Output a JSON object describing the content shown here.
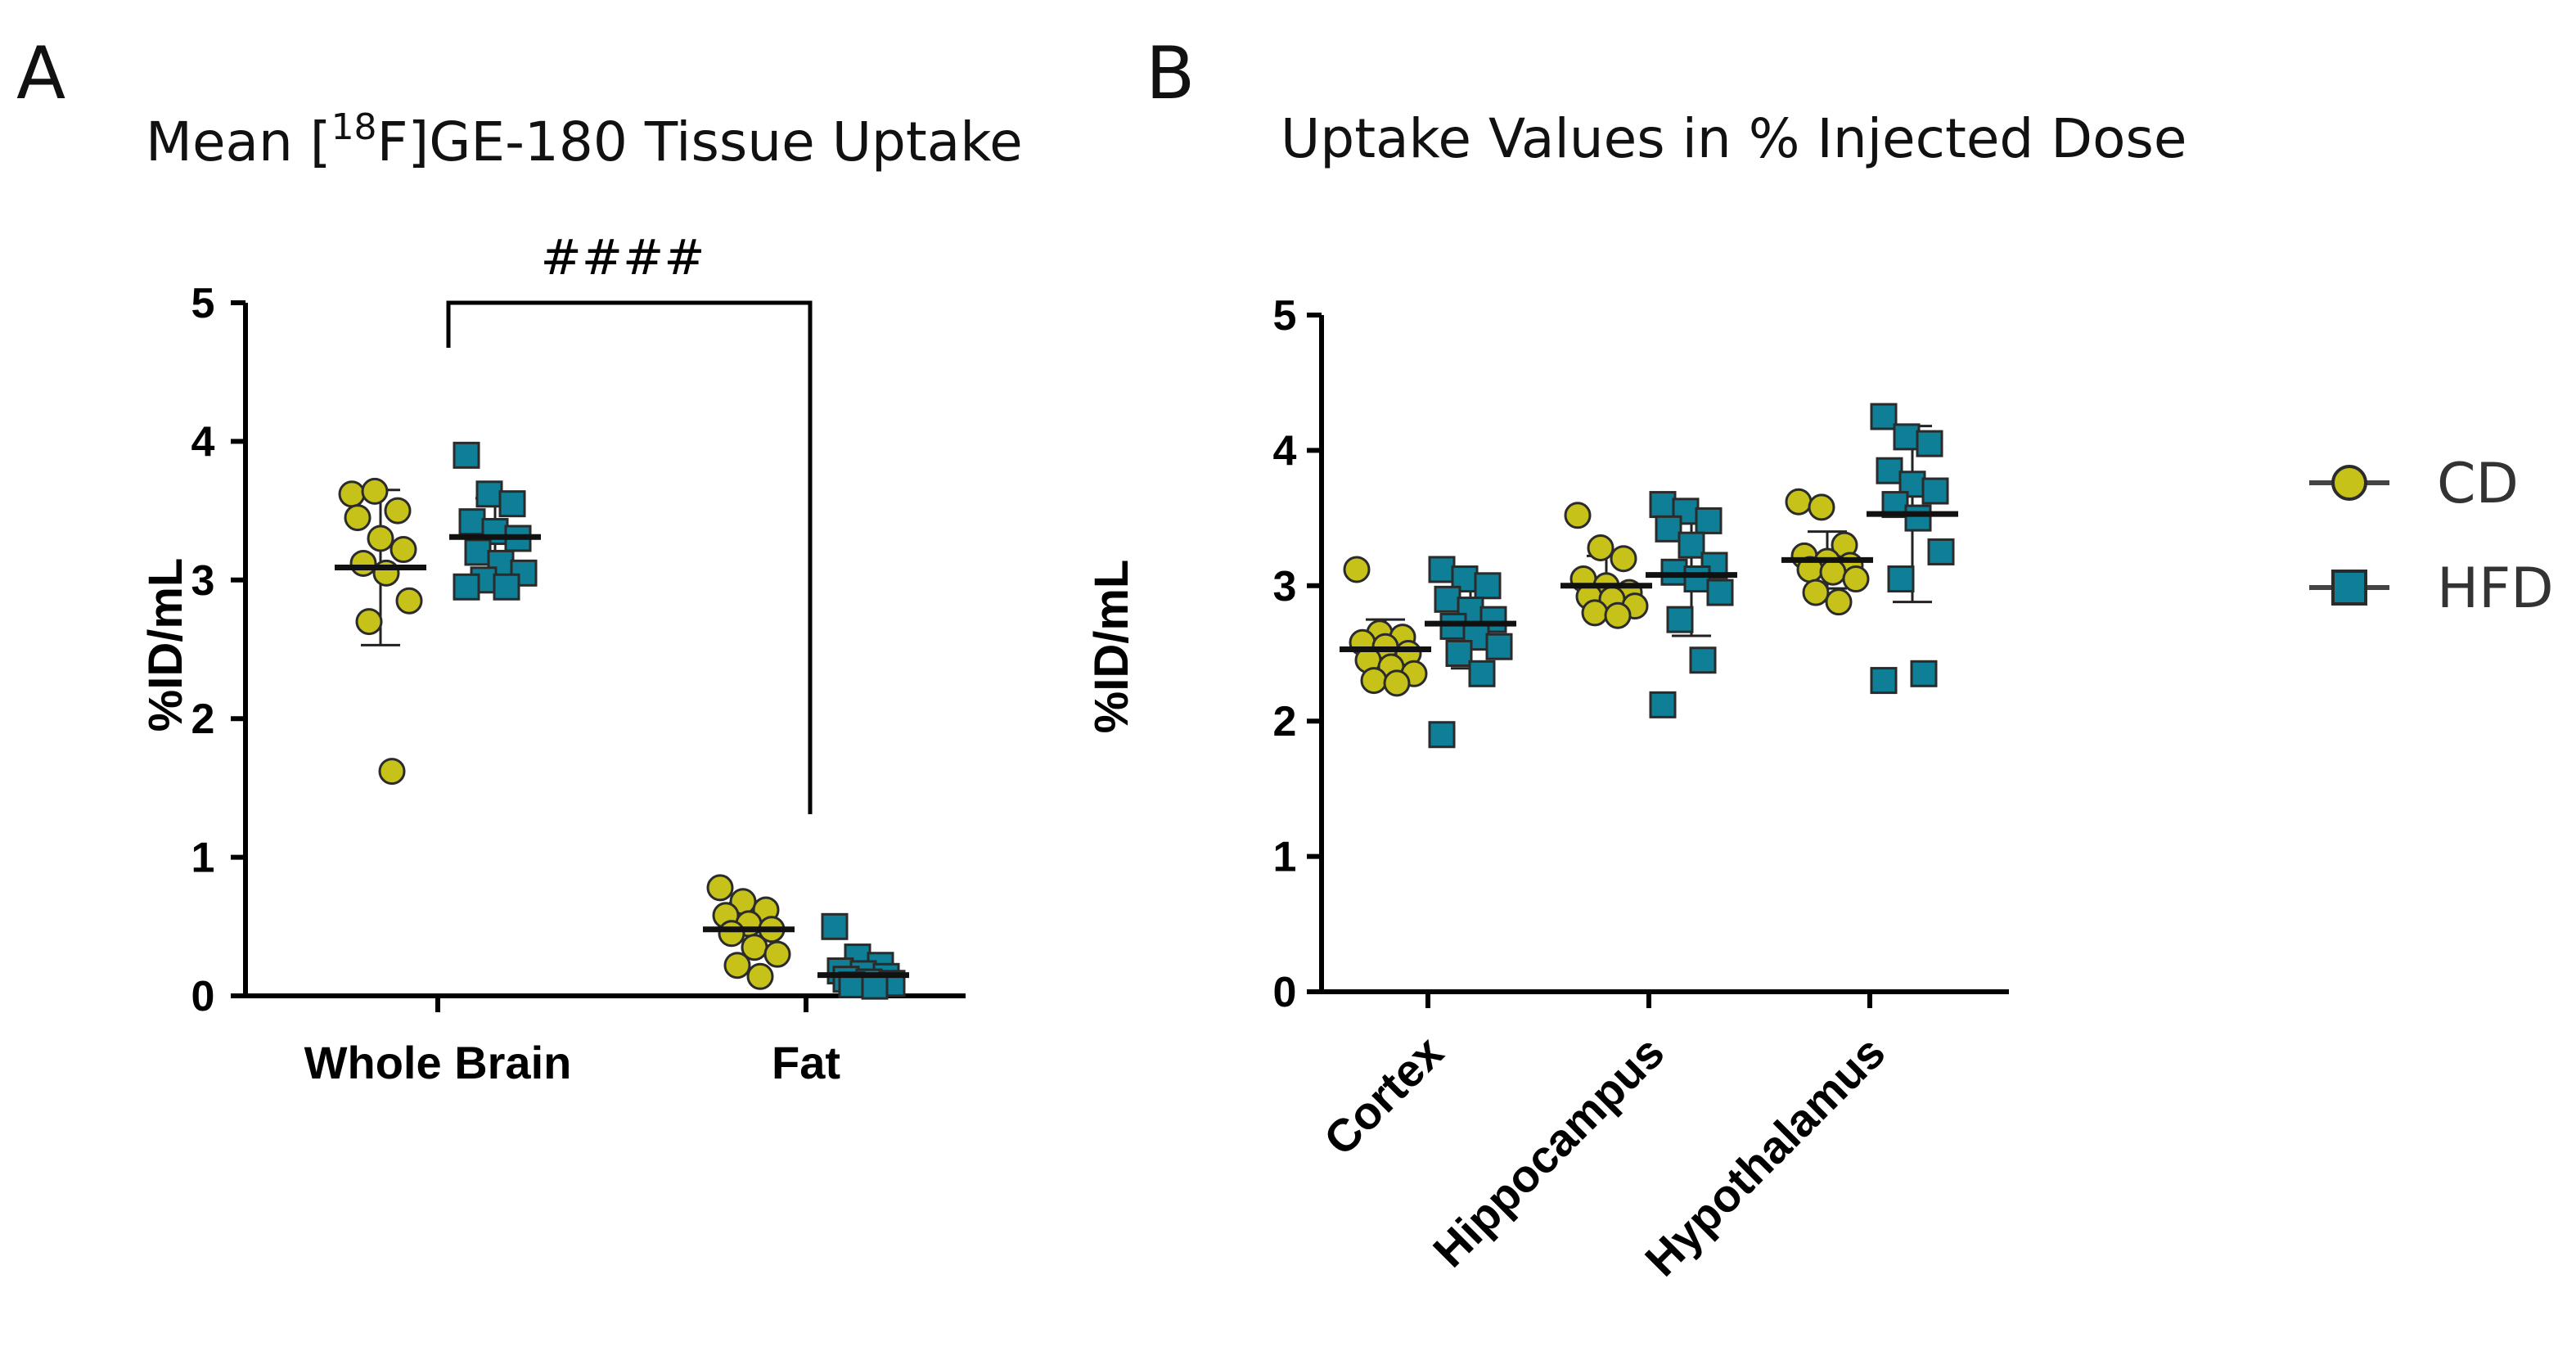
{
  "colors": {
    "CD": "#c6c21a",
    "HFD": "#0e7f96",
    "stroke": "#2b2b2b",
    "axis": "#000000"
  },
  "legend": [
    {
      "name": "CD",
      "marker": "circle"
    },
    {
      "name": "HFD",
      "marker": "square"
    }
  ],
  "chart_data": [
    {
      "panel_label": "A",
      "type": "scatter",
      "title_pre": "Mean [",
      "title_sup": "18",
      "title_post": "F]GE-180 Tissue Uptake",
      "ylabel": "%ID/mL",
      "ylim": [
        0,
        5
      ],
      "yticks": [
        "0",
        "1",
        "2",
        "3",
        "4",
        "5"
      ],
      "categories": [
        "Whole Brain",
        "Fat"
      ],
      "significance": {
        "label": "####",
        "from": "Whole Brain",
        "to": "Fat"
      },
      "series": [
        {
          "name": "CD",
          "marker": "circle",
          "groups": [
            {
              "category": "Whole Brain",
              "mean": 3.09,
              "sd": 0.56,
              "values": [
                3.62,
                3.64,
                3.5,
                3.45,
                3.3,
                3.22,
                3.12,
                3.05,
                2.85,
                2.7,
                1.62
              ]
            },
            {
              "category": "Fat",
              "mean": 0.48,
              "sd": 0.19,
              "values": [
                0.78,
                0.68,
                0.62,
                0.58,
                0.52,
                0.48,
                0.45,
                0.35,
                0.3,
                0.22,
                0.14
              ]
            }
          ]
        },
        {
          "name": "HFD",
          "marker": "square",
          "groups": [
            {
              "category": "Whole Brain",
              "mean": 3.31,
              "sd": 0.28,
              "values": [
                3.9,
                3.62,
                3.55,
                3.42,
                3.35,
                3.3,
                3.2,
                3.12,
                3.05,
                3.0,
                2.95,
                2.95
              ]
            },
            {
              "category": "Fat",
              "mean": 0.15,
              "sd": 0.12,
              "values": [
                0.5,
                0.28,
                0.22,
                0.18,
                0.16,
                0.14,
                0.12,
                0.1,
                0.09,
                0.08,
                0.07
              ]
            }
          ]
        }
      ]
    },
    {
      "panel_label": "B",
      "type": "scatter",
      "title": "Uptake Values in % Injected Dose",
      "ylabel": "%ID/mL",
      "ylim": [
        0,
        5
      ],
      "yticks": [
        "0",
        "1",
        "2",
        "3",
        "4",
        "5"
      ],
      "categories": [
        "Cortex",
        "Hippocampus",
        "Hypothalamus"
      ],
      "series": [
        {
          "name": "CD",
          "marker": "circle",
          "groups": [
            {
              "category": "Cortex",
              "mean": 2.53,
              "sd": 0.22,
              "values": [
                3.12,
                2.65,
                2.62,
                2.58,
                2.55,
                2.5,
                2.45,
                2.4,
                2.35,
                2.3,
                2.28
              ]
            },
            {
              "category": "Hippocampus",
              "mean": 3.0,
              "sd": 0.22,
              "values": [
                3.52,
                3.28,
                3.2,
                3.05,
                3.0,
                2.95,
                2.92,
                2.9,
                2.85,
                2.8,
                2.78
              ]
            },
            {
              "category": "Hypothalamus",
              "mean": 3.19,
              "sd": 0.21,
              "values": [
                3.62,
                3.58,
                3.3,
                3.22,
                3.18,
                3.15,
                3.12,
                3.1,
                3.05,
                2.95,
                2.88
              ]
            }
          ]
        },
        {
          "name": "HFD",
          "marker": "square",
          "groups": [
            {
              "category": "Cortex",
              "mean": 2.72,
              "sd": 0.33,
              "values": [
                3.12,
                3.05,
                3.0,
                2.9,
                2.82,
                2.75,
                2.7,
                2.62,
                2.55,
                2.5,
                2.35,
                1.9
              ]
            },
            {
              "category": "Hippocampus",
              "mean": 3.08,
              "sd": 0.45,
              "values": [
                3.6,
                3.55,
                3.48,
                3.42,
                3.3,
                3.15,
                3.1,
                3.05,
                2.95,
                2.75,
                2.45,
                2.12
              ]
            },
            {
              "category": "Hypothalamus",
              "mean": 3.53,
              "sd": 0.65,
              "values": [
                4.25,
                4.1,
                4.05,
                3.85,
                3.75,
                3.7,
                3.6,
                3.5,
                3.25,
                3.05,
                2.35,
                2.3
              ]
            }
          ]
        }
      ]
    }
  ]
}
